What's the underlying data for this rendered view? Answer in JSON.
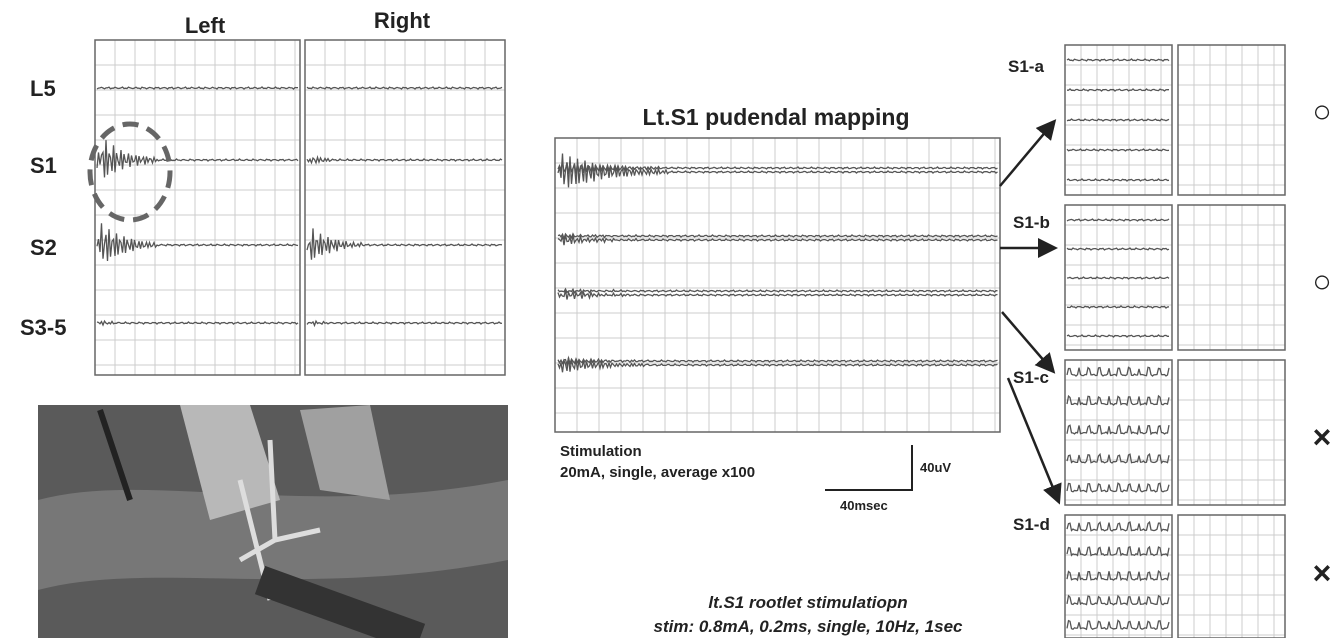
{
  "left_panel": {
    "columns": [
      "Left",
      "Right"
    ],
    "rows": [
      "L5",
      "S1",
      "S2",
      "S3-5"
    ]
  },
  "mapping": {
    "title": "Lt.S1 pudendal mapping",
    "stimulation": {
      "label": "Stimulation",
      "params": "20mA, single, average x100"
    },
    "scale": {
      "voltage": "40uV",
      "time": "40msec"
    }
  },
  "rootlets": [
    {
      "label": "S1-a",
      "result": "○"
    },
    {
      "label": "S1-b",
      "result": "○"
    },
    {
      "label": "S1-c",
      "result": "×"
    },
    {
      "label": "S1-d",
      "result": "×"
    }
  ],
  "rootlet_stimulation": {
    "title": "lt.S1 rootlet stimulatiopn",
    "params": "stim: 0.8mA, 0.2ms, single, 10Hz, 1sec"
  }
}
